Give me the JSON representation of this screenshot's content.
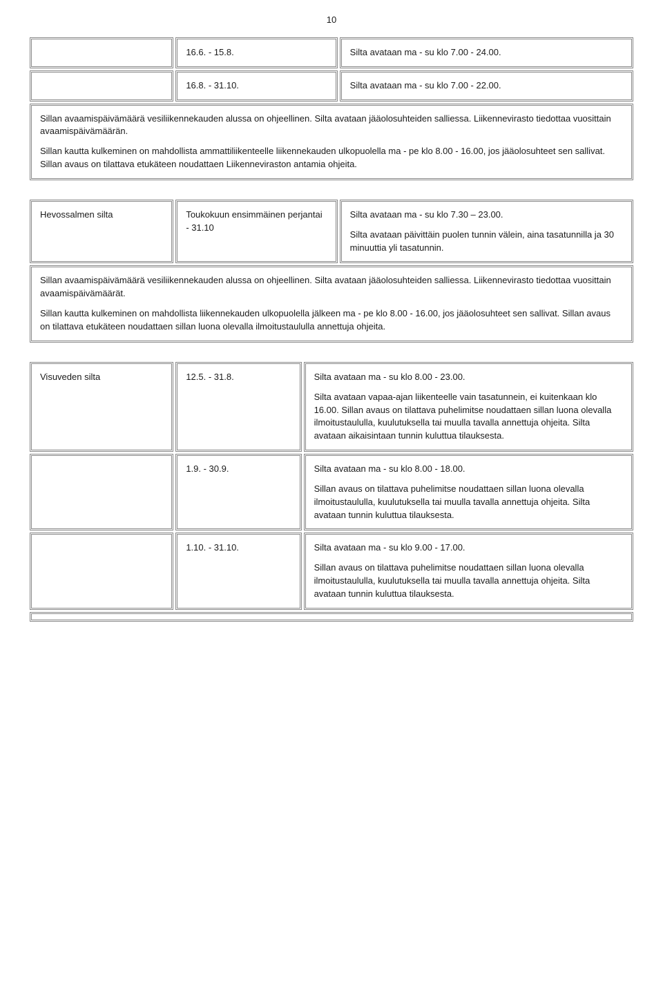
{
  "page_number": "10",
  "table1": {
    "row1_col2": "16.6. - 15.8.",
    "row1_col3": "Silta avataan ma - su klo 7.00 - 24.00.",
    "row2_col2": "16.8. - 31.10.",
    "row2_col3": "Silta avataan ma - su klo 7.00 - 22.00.",
    "note_p1": "Sillan avaamispäivämäärä vesiliikennekauden alussa on ohjeellinen. Silta avataan jääolosuhteiden salliessa. Liikennevirasto tiedottaa vuosittain avaamispäivämäärän.",
    "note_p2": "Sillan kautta kulkeminen on mahdollista ammattiliikenteelle liikennekauden ulkopuolella ma - pe klo 8.00 - 16.00, jos jääolosuhteet sen sallivat. Sillan avaus on tilattava etukäteen noudattaen Liikenneviraston antamia ohjeita."
  },
  "table2": {
    "col1": "Hevossalmen silta",
    "col2": "Toukokuun ensimmäinen perjantai - 31.10",
    "col3_p1": "Silta avataan ma - su klo 7.30 – 23.00.",
    "col3_p2": "Silta avataan päivittäin puolen tunnin välein, aina tasatunnilla ja 30 minuuttia yli tasatunnin.",
    "note_p1": "Sillan avaamispäivämäärä vesiliikennekauden alussa on ohjeellinen. Silta avataan jääolosuhteiden salliessa. Liikennevirasto tiedottaa vuosittain avaamispäivämäärät.",
    "note_p2": "Sillan kautta kulkeminen on mahdollista liikennekauden ulkopuolella jälkeen ma - pe klo 8.00 - 16.00, jos jääolosuhteet sen sallivat. Sillan avaus on tilattava etukäteen noudattaen sillan luona olevalla ilmoitustaululla annettuja ohjeita."
  },
  "table3": {
    "r1c1": "Visuveden silta",
    "r1c2": "12.5. - 31.8.",
    "r1c3_p1": "Silta avataan ma - su klo 8.00 - 23.00.",
    "r1c3_p2": "Silta avataan vapaa-ajan liikenteelle vain tasatunnein, ei kuitenkaan klo 16.00. Sillan avaus on tilattava puhelimitse noudattaen sillan luona olevalla ilmoitustaululla, kuulutuksella tai muulla tavalla annettuja ohjeita. Silta avataan aikaisintaan tunnin kuluttua tilauksesta.",
    "r2c2": "1.9. - 30.9.",
    "r2c3_p1": "Silta avataan ma - su klo 8.00 - 18.00.",
    "r2c3_p2": "Sillan avaus on tilattava puhelimitse noudattaen sillan luona olevalla ilmoitustaululla, kuulutuksella tai muulla tavalla annettuja ohjeita. Silta avataan tunnin kuluttua tilauksesta.",
    "r3c2": "1.10. - 31.10.",
    "r3c3_p1": "Silta avataan ma - su klo 9.00 - 17.00.",
    "r3c3_p2": "Sillan avaus on tilattava puhelimitse noudattaen sillan luona olevalla ilmoitustaululla, kuulutuksella tai muulla tavalla annettuja ohjeita. Silta avataan tunnin kuluttua tilauksesta."
  }
}
